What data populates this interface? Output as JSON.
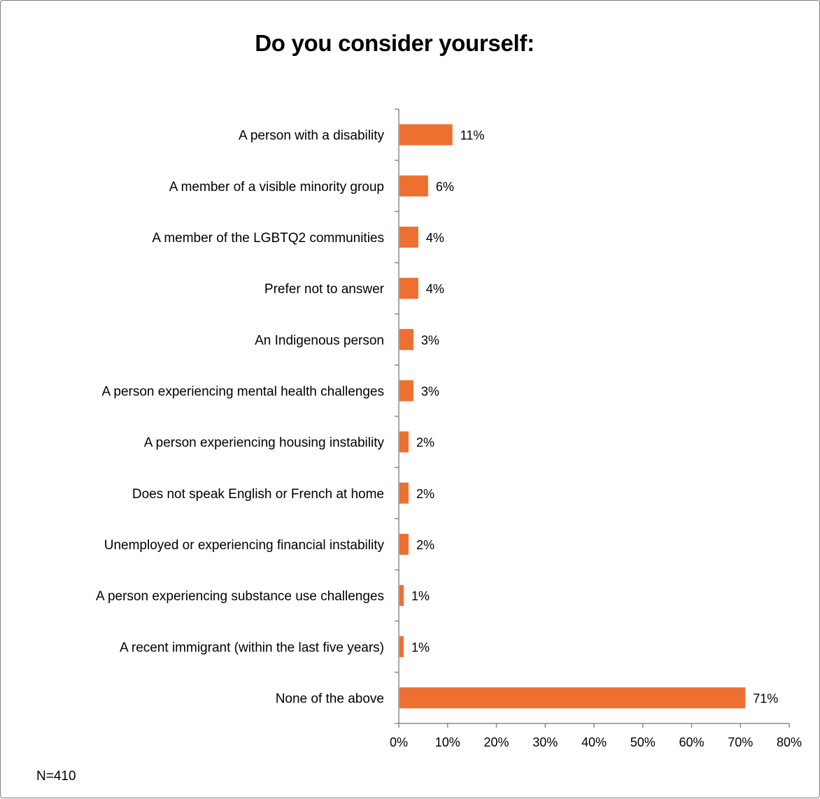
{
  "chart_data": {
    "type": "bar",
    "orientation": "horizontal",
    "title": "Do you consider yourself:",
    "note": "N=410",
    "categories": [
      "A person with a disability",
      "A member of a visible minority group",
      "A member of the LGBTQ2 communities",
      "Prefer not to answer",
      "An Indigenous person",
      "A person experiencing mental health challenges",
      "A person experiencing housing instability",
      "Does not speak English or French at home",
      "Unemployed or experiencing financial instability",
      "A person experiencing substance use challenges",
      "A recent immigrant (within the last five years)",
      "None of the above"
    ],
    "values": [
      11,
      6,
      4,
      4,
      3,
      3,
      2,
      2,
      2,
      1,
      1,
      71
    ],
    "value_labels": [
      "11%",
      "6%",
      "4%",
      "4%",
      "3%",
      "3%",
      "2%",
      "2%",
      "2%",
      "1%",
      "1%",
      "71%"
    ],
    "xlim": [
      0,
      80
    ],
    "x_ticks": [
      "0%",
      "10%",
      "20%",
      "30%",
      "40%",
      "50%",
      "60%",
      "70%",
      "80%"
    ],
    "bar_color": "#ED7031",
    "grid": false,
    "legend": "none"
  }
}
